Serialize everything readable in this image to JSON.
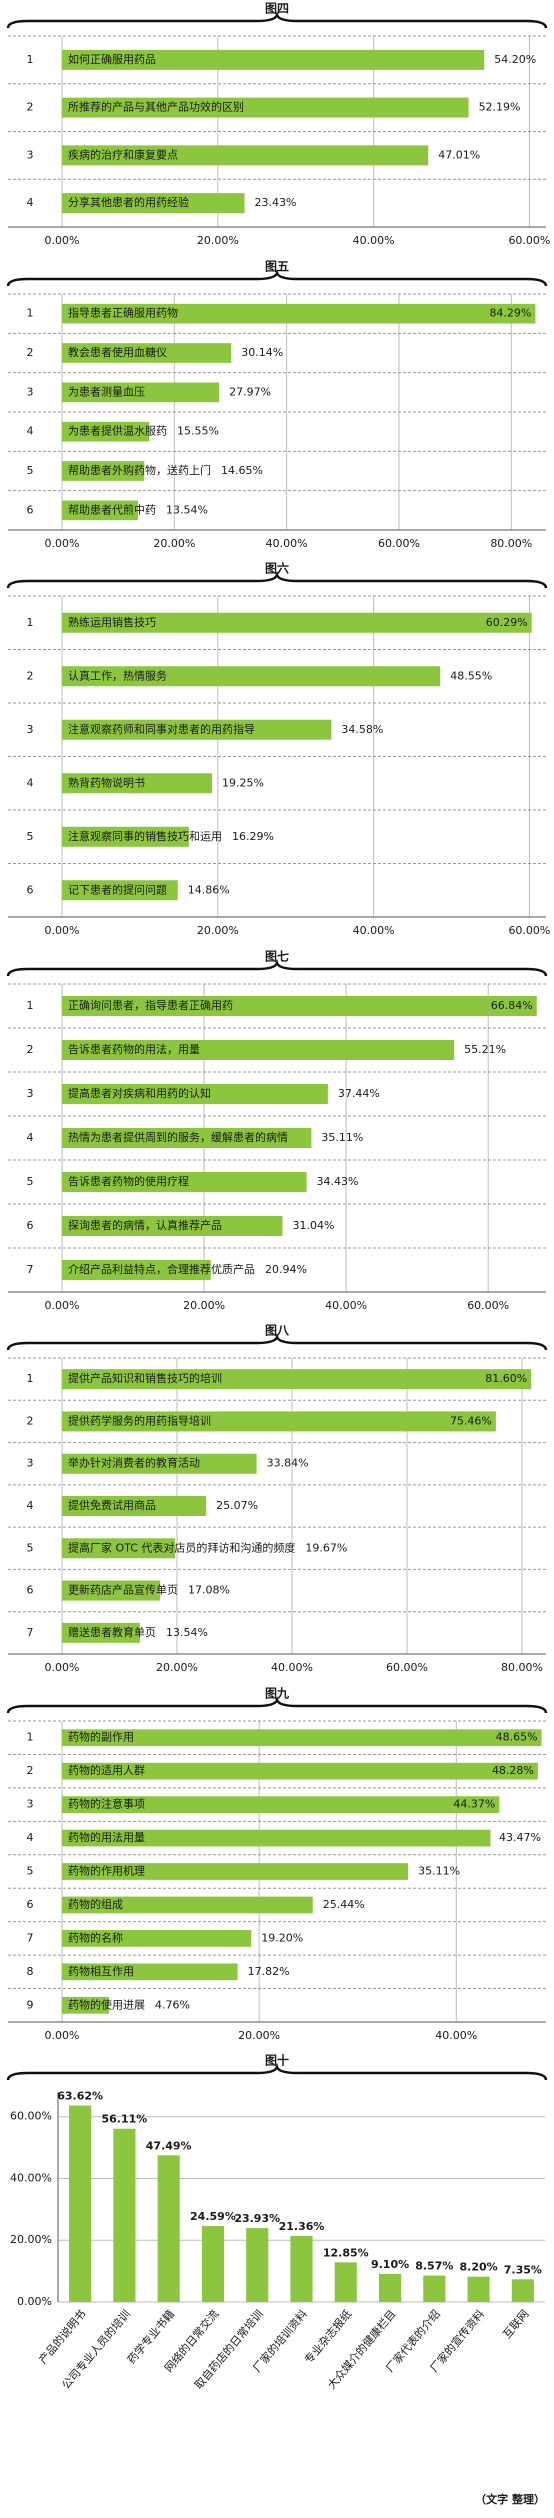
{
  "chart_data": [
    {
      "type": "hbar",
      "title": "图四",
      "color": "#8cc63e",
      "grid": true,
      "row_labels": [
        "1",
        "2",
        "3",
        "4"
      ],
      "categories": [
        "如何正确服用药品",
        "所推荐的产品与其他产品功效的区别",
        "疾病的治疗和康复要点",
        "分享其他患者的用药经验"
      ],
      "values": [
        54.2,
        52.19,
        47.01,
        23.43
      ],
      "value_labels": [
        "54.20%",
        "52.19%",
        "47.01%",
        "23.43%"
      ],
      "xlim": [
        0,
        62
      ],
      "xticks": [
        {
          "value": 0,
          "label": "0.00%"
        },
        {
          "value": 20,
          "label": "20.00%"
        },
        {
          "value": 40,
          "label": "40.00%"
        },
        {
          "value": 60,
          "label": "60.00%"
        }
      ]
    },
    {
      "type": "hbar",
      "title": "图五",
      "color": "#8cc63e",
      "grid": true,
      "row_labels": [
        "1",
        "2",
        "3",
        "4",
        "5",
        "6"
      ],
      "categories": [
        "指导患者正确服用药物",
        "教会患者使用血糖仪",
        "为患者测量血压",
        "为患者提供温水服药",
        "帮助患者外购药物，送药上门",
        "帮助患者代煎中药"
      ],
      "values": [
        84.29,
        30.14,
        27.97,
        15.55,
        14.65,
        13.54
      ],
      "value_labels": [
        "84.29%",
        "30.14%",
        "27.97%",
        "15.55%",
        "14.65%",
        "13.54%"
      ],
      "xlim": [
        0,
        86
      ],
      "xticks": [
        {
          "value": 0,
          "label": "0.00%"
        },
        {
          "value": 20,
          "label": "20.00%"
        },
        {
          "value": 40,
          "label": "40.00%"
        },
        {
          "value": 60,
          "label": "60.00%"
        },
        {
          "value": 80,
          "label": "80.00%"
        }
      ]
    },
    {
      "type": "hbar",
      "title": "图六",
      "color": "#8cc63e",
      "grid": true,
      "row_labels": [
        "1",
        "2",
        "3",
        "4",
        "5",
        "6"
      ],
      "categories": [
        "熟练运用销售技巧",
        "认真工作，热情服务",
        "注意观察药师和同事对患者的用药指导",
        "熟背药物说明书",
        "注意观察同事的销售技巧和运用",
        "记下患者的提问问题"
      ],
      "values": [
        60.29,
        48.55,
        34.58,
        19.25,
        16.29,
        14.86
      ],
      "value_labels": [
        "60.29%",
        "48.55%",
        "34.58%",
        "19.25%",
        "16.29%",
        "14.86%"
      ],
      "xlim": [
        0,
        62
      ],
      "xticks": [
        {
          "value": 0,
          "label": "0.00%"
        },
        {
          "value": 20,
          "label": "20.00%"
        },
        {
          "value": 40,
          "label": "40.00%"
        },
        {
          "value": 60,
          "label": "60.00%"
        }
      ]
    },
    {
      "type": "hbar",
      "title": "图七",
      "color": "#8cc63e",
      "grid": true,
      "row_labels": [
        "1",
        "2",
        "3",
        "4",
        "5",
        "6",
        "7"
      ],
      "categories": [
        "正确询问患者，指导患者正确用药",
        "告诉患者药物的用法，用量",
        "提高患者对疾病和用药的认知",
        "热情为患者提供周到的服务，缓解患者的病情",
        "告诉患者药物的使用疗程",
        "探询患者的病情，认真推荐产品",
        "介绍产品利益特点，合理推荐优质产品"
      ],
      "values": [
        66.84,
        55.21,
        37.44,
        35.11,
        34.43,
        31.04,
        20.94
      ],
      "value_labels": [
        "66.84%",
        "55.21%",
        "37.44%",
        "35.11%",
        "34.43%",
        "31.04%",
        "20.94%"
      ],
      "xlim": [
        0,
        68
      ],
      "xticks": [
        {
          "value": 0,
          "label": "0.00%"
        },
        {
          "value": 20,
          "label": "20.00%"
        },
        {
          "value": 40,
          "label": "40.00%"
        },
        {
          "value": 60,
          "label": "60.00%"
        }
      ]
    },
    {
      "type": "hbar",
      "title": "图八",
      "color": "#8cc63e",
      "grid": true,
      "row_labels": [
        "1",
        "2",
        "3",
        "4",
        "5",
        "6",
        "7"
      ],
      "categories": [
        "提供产品知识和销售技巧的培训",
        "提供药学服务的用药指导培训",
        "举办针对消费者的教育活动",
        "提供免费试用商品",
        "提高厂家 OTC 代表对店员的拜访和沟通的频度",
        "更新药店产品宣传单页",
        "赠送患者教育单页"
      ],
      "values": [
        81.6,
        75.46,
        33.84,
        25.07,
        19.67,
        17.08,
        13.54
      ],
      "value_labels": [
        "81.60%",
        "75.46%",
        "33.84%",
        "25.07%",
        "19.67%",
        "17.08%",
        "13.54%"
      ],
      "xlim": [
        0,
        84
      ],
      "xticks": [
        {
          "value": 0,
          "label": "0.00%"
        },
        {
          "value": 20,
          "label": "20.00%"
        },
        {
          "value": 40,
          "label": "40.00%"
        },
        {
          "value": 60,
          "label": "60.00%"
        },
        {
          "value": 80,
          "label": "80.00%"
        }
      ]
    },
    {
      "type": "hbar",
      "title": "图九",
      "color": "#8cc63e",
      "grid": true,
      "row_labels": [
        "1",
        "2",
        "3",
        "4",
        "5",
        "6",
        "7",
        "8",
        "9"
      ],
      "categories": [
        "药物的副作用",
        "药物的适用人群",
        "药物的注意事项",
        "药物的用法用量",
        "药物的作用机理",
        "药物的组成",
        "药物的名称",
        "药物相互作用",
        "药物的使用进展"
      ],
      "values": [
        48.65,
        48.28,
        44.37,
        43.47,
        35.11,
        25.44,
        19.2,
        17.82,
        4.76
      ],
      "value_labels": [
        "48.65%",
        "48.28%",
        "44.37%",
        "43.47%",
        "35.11%",
        "25.44%",
        "19.20%",
        "17.82%",
        "4.76%"
      ],
      "xlim": [
        0,
        49
      ],
      "xticks": [
        {
          "value": 0,
          "label": "0.00%"
        },
        {
          "value": 20,
          "label": "20.00%"
        },
        {
          "value": 40,
          "label": "40.00%"
        }
      ]
    },
    {
      "type": "bar",
      "title": "图十",
      "color": "#8cc63e",
      "grid": true,
      "categories": [
        "产品的说明书",
        "公司专业人员的培训",
        "药学专业书籍",
        "网络的日常交流",
        "取自药店的日常培训",
        "厂家的培训资料",
        "专业杂志报纸",
        "大众媒介的健康栏目",
        "厂家代表的介绍",
        "厂家的宣传资料",
        "互联网"
      ],
      "values": [
        63.62,
        56.11,
        47.49,
        24.59,
        23.93,
        21.36,
        12.85,
        9.1,
        8.57,
        8.2,
        7.35
      ],
      "value_labels": [
        "63.62%",
        "56.11%",
        "47.49%",
        "24.59%",
        "23.93%",
        "21.36%",
        "12.85%",
        "9.10%",
        "8.57%",
        "8.20%",
        "7.35%"
      ],
      "ylim": [
        0,
        68
      ],
      "yticks": [
        {
          "value": 0,
          "label": "0.00%"
        },
        {
          "value": 20,
          "label": "20.00%"
        },
        {
          "value": 40,
          "label": "40.00%"
        },
        {
          "value": 60,
          "label": "60.00%"
        }
      ]
    }
  ],
  "footer": "（文字  整理）"
}
